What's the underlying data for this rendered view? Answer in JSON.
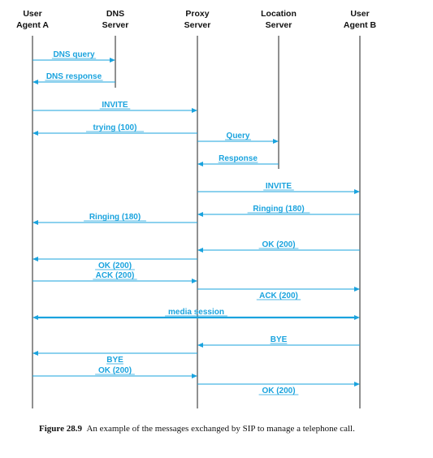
{
  "accent_color": "#1aa3de",
  "lifeline_color": "#222222",
  "participants": [
    {
      "id": "uaa",
      "line1": "User",
      "line2": "Agent A"
    },
    {
      "id": "dns",
      "line1": "DNS",
      "line2": "Server"
    },
    {
      "id": "proxy",
      "line1": "Proxy",
      "line2": "Server"
    },
    {
      "id": "loc",
      "line1": "Location",
      "line2": "Server"
    },
    {
      "id": "uab",
      "line1": "User",
      "line2": "Agent B"
    }
  ],
  "messages": [
    {
      "label": "DNS query",
      "from": "uaa",
      "to": "dns"
    },
    {
      "label": "DNS response",
      "from": "dns",
      "to": "uaa"
    },
    {
      "label": "INVITE",
      "from": "uaa",
      "to": "proxy"
    },
    {
      "label": "trying (100)",
      "from": "proxy",
      "to": "uaa"
    },
    {
      "label": "Query",
      "from": "proxy",
      "to": "loc"
    },
    {
      "label": "Response",
      "from": "loc",
      "to": "proxy"
    },
    {
      "label": "INVITE",
      "from": "proxy",
      "to": "uab"
    },
    {
      "label": "Ringing (180)",
      "from": "uab",
      "to": "proxy"
    },
    {
      "label": "Ringing (180)",
      "from": "proxy",
      "to": "uaa"
    },
    {
      "label": "OK (200)",
      "from": "uab",
      "to": "proxy"
    },
    {
      "label": "OK (200)",
      "from": "proxy",
      "to": "uaa"
    },
    {
      "label": "ACK (200)",
      "from": "uaa",
      "to": "proxy"
    },
    {
      "label": "ACK (200)",
      "from": "proxy",
      "to": "uab"
    },
    {
      "label": "media session",
      "from": "uaa",
      "to": "uab",
      "bidirectional": true
    },
    {
      "label": "BYE",
      "from": "uab",
      "to": "proxy"
    },
    {
      "label": "BYE",
      "from": "proxy",
      "to": "uaa"
    },
    {
      "label": "OK (200)",
      "from": "uaa",
      "to": "proxy"
    },
    {
      "label": "OK (200)",
      "from": "proxy",
      "to": "uab"
    }
  ],
  "caption": {
    "label": "Figure 28.9",
    "text": "An example of the messages exchanged by SIP to manage a telephone call."
  }
}
